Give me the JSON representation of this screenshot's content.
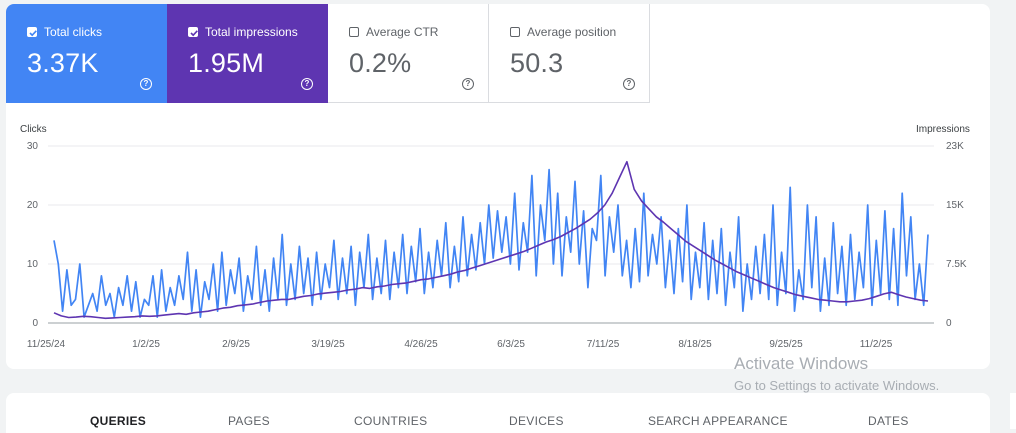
{
  "metrics": [
    {
      "label": "Total clicks",
      "value": "3.37K",
      "checked": true
    },
    {
      "label": "Total impressions",
      "value": "1.95M",
      "checked": true
    },
    {
      "label": "Average CTR",
      "value": "0.2%",
      "checked": false
    },
    {
      "label": "Average position",
      "value": "50.3",
      "checked": false
    }
  ],
  "colors": {
    "clicks": "#4285f4",
    "impressions": "#5e35b1"
  },
  "chart_data": {
    "type": "line",
    "y_left_label": "Clicks",
    "y_right_label": "Impressions",
    "y_left_ticks": [
      "30",
      "20",
      "10",
      "0"
    ],
    "y_right_ticks": [
      "23K",
      "15K",
      "7.5K",
      "0"
    ],
    "y_left_range": [
      0,
      30
    ],
    "y_right_range": [
      0,
      22500
    ],
    "x_tick_labels": [
      "11/25/24",
      "1/2/25",
      "2/9/25",
      "3/19/25",
      "4/26/25",
      "6/3/25",
      "7/11/25",
      "8/18/25",
      "9/25/25",
      "11/2/25"
    ],
    "grid": true,
    "series": [
      {
        "axis": "left",
        "values": [
          14,
          10,
          2,
          9,
          3,
          4,
          10,
          1,
          3,
          5,
          2,
          8,
          3,
          5,
          1,
          6,
          3,
          8,
          2,
          7,
          1,
          4,
          3,
          8,
          1,
          9,
          2,
          6,
          3,
          8,
          4,
          12,
          2,
          9,
          1,
          7,
          4,
          10,
          2,
          12,
          3,
          9,
          5,
          11,
          2,
          8,
          4,
          13,
          3,
          9,
          2,
          11,
          4,
          15,
          3,
          10,
          4,
          13,
          5,
          11,
          3,
          12,
          4,
          10,
          6,
          14,
          4,
          11,
          5,
          13,
          3,
          12,
          6,
          15,
          4,
          11,
          5,
          14,
          4,
          12,
          6,
          15,
          5,
          13,
          7,
          16,
          5,
          12,
          6,
          14,
          8,
          17,
          6,
          13,
          7,
          18,
          8,
          15,
          9,
          17,
          10,
          20,
          11,
          19,
          12,
          18,
          10,
          22,
          9,
          17,
          12,
          25,
          8,
          20,
          14,
          26,
          10,
          22,
          8,
          18,
          12,
          24,
          10,
          19,
          6,
          16,
          14,
          25,
          8,
          18,
          12,
          20,
          8,
          14,
          6,
          16,
          7,
          22,
          8,
          15,
          10,
          18,
          6,
          14,
          5,
          16,
          7,
          20,
          4,
          12,
          6,
          17,
          4,
          14,
          5,
          16,
          3,
          12,
          6,
          18,
          2,
          10,
          4,
          13,
          5,
          15,
          4,
          20,
          3,
          12,
          5,
          23,
          2,
          9,
          4,
          20,
          6,
          18,
          2,
          11,
          3,
          17,
          5,
          13,
          3,
          15,
          4,
          12,
          6,
          20,
          3,
          14,
          5,
          19,
          4,
          16,
          3,
          22,
          8,
          18,
          4,
          10,
          3,
          15
        ],
        "name": ""
      },
      {
        "axis": "right",
        "values": [
          1300,
          900,
          700,
          750,
          850,
          800,
          700,
          600,
          650,
          700,
          750,
          800,
          900,
          850,
          900,
          1000,
          1100,
          1200,
          1100,
          1300,
          1400,
          1500,
          1700,
          1900,
          2000,
          2200,
          2300,
          2400,
          2600,
          2800,
          2900,
          3000,
          3000,
          3200,
          3400,
          3500,
          3700,
          3800,
          3900,
          4000,
          4200,
          4300,
          4500,
          4400,
          4600,
          4700,
          4900,
          5000,
          5100,
          5300,
          5500,
          5600,
          5800,
          6000,
          6200,
          6500,
          6700,
          7000,
          7300,
          7600,
          7900,
          8200,
          8500,
          8800,
          9100,
          9500,
          9900,
          10300,
          10600,
          11000,
          11500,
          12000,
          12600,
          13200,
          14000,
          15000,
          16500,
          18500,
          20500,
          17000,
          15500,
          14500,
          13500,
          12800,
          12000,
          11200,
          10400,
          9800,
          9200,
          8600,
          8000,
          7500,
          7000,
          6500,
          6100,
          5700,
          5300,
          4900,
          4500,
          4200,
          3900,
          3600,
          3400,
          3200,
          3000,
          2900,
          2800,
          2700,
          2700,
          2800,
          2900,
          3100,
          3400,
          3700,
          3900,
          3600,
          3300,
          3100,
          2900,
          2800
        ],
        "name": ""
      }
    ]
  },
  "watermark": {
    "line1": "Activate Windows",
    "line2": "Go to Settings to activate Windows."
  },
  "tabs": [
    {
      "label": "QUERIES",
      "active": true
    },
    {
      "label": "PAGES",
      "active": false
    },
    {
      "label": "COUNTRIES",
      "active": false
    },
    {
      "label": "DEVICES",
      "active": false
    },
    {
      "label": "SEARCH APPEARANCE",
      "active": false
    },
    {
      "label": "DATES",
      "active": false
    }
  ]
}
